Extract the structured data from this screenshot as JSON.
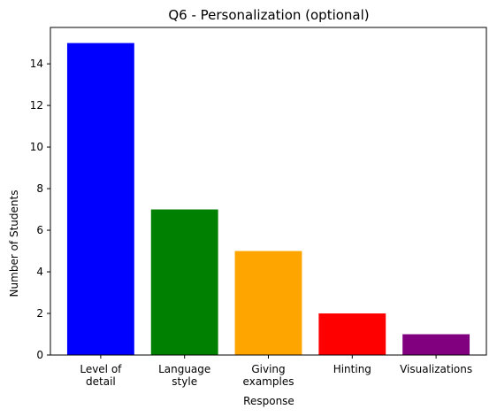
{
  "chart_data": {
    "type": "bar",
    "title": "Q6 - Personalization (optional)",
    "xlabel": "Response",
    "ylabel": "Number of Students",
    "categories": [
      [
        "Level of",
        "detail"
      ],
      [
        "Language",
        "style"
      ],
      [
        "Giving",
        "examples"
      ],
      [
        "Hinting"
      ],
      [
        "Visualizations"
      ]
    ],
    "values": [
      15,
      7,
      5,
      2,
      1
    ],
    "colors": [
      "#0000ff",
      "#008000",
      "#ffa500",
      "#ff0000",
      "#800080"
    ],
    "ylim": [
      0,
      15.75
    ],
    "yticks": [
      0,
      2,
      4,
      6,
      8,
      10,
      12,
      14
    ],
    "grid": false,
    "legend": "none"
  }
}
